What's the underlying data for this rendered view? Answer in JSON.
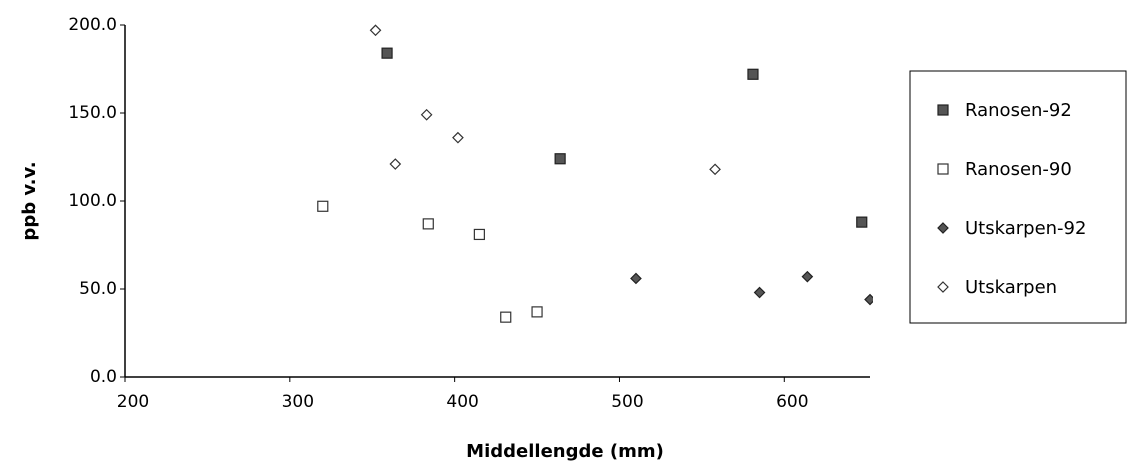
{
  "chart_data": {
    "type": "scatter",
    "x_label": "Middellengde (mm)",
    "y_label": "ppb v.v.",
    "xlim": [
      200,
      652
    ],
    "ylim": [
      0,
      200
    ],
    "xticks": [
      200,
      300,
      400,
      500,
      600
    ],
    "yticks": [
      {
        "value": 0,
        "label": "0.0"
      },
      {
        "value": 50,
        "label": "50.0"
      },
      {
        "value": 100,
        "label": "100.0"
      },
      {
        "value": 150,
        "label": "150.0"
      },
      {
        "value": 200,
        "label": "200.0"
      }
    ],
    "grid": false,
    "legend": "right",
    "series": [
      {
        "name": "Ranosen-92",
        "marker": "square",
        "filled": true,
        "color": "#555555",
        "x": [
          359,
          464,
          581,
          647
        ],
        "values": [
          184,
          124,
          172,
          88
        ]
      },
      {
        "name": "Ranosen-90",
        "marker": "square",
        "filled": false,
        "color": "#333333",
        "x": [
          320,
          384,
          415,
          431,
          450
        ],
        "values": [
          97,
          87,
          81,
          34,
          37
        ]
      },
      {
        "name": "Utskarpen-92",
        "marker": "diamond",
        "filled": true,
        "color": "#555555",
        "x": [
          510,
          585,
          614,
          652
        ],
        "values": [
          56,
          48,
          57,
          44
        ]
      },
      {
        "name": "Utskarpen",
        "marker": "diamond",
        "filled": false,
        "color": "#333333",
        "x": [
          352,
          364,
          383,
          402,
          558
        ],
        "values": [
          197,
          121,
          149,
          136,
          118
        ]
      }
    ]
  }
}
